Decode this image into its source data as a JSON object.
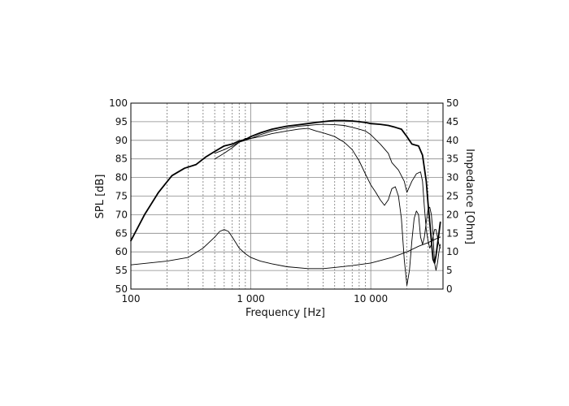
{
  "chart_data": {
    "type": "line",
    "xlabel": "Frequency [Hz]",
    "ylabel": "SPL [dB]",
    "y2label": "Impedance [Ohm]",
    "xscale": "log",
    "xlim": [
      100,
      40000
    ],
    "ylim": [
      50,
      100
    ],
    "y2lim": [
      0,
      50
    ],
    "grid": true,
    "x_ticks": [
      {
        "value": 100,
        "label": "100"
      },
      {
        "value": 1000,
        "label": "1 000"
      },
      {
        "value": 10000,
        "label": "10 000"
      }
    ],
    "y_ticks": [
      50,
      55,
      60,
      65,
      70,
      75,
      80,
      85,
      90,
      95,
      100
    ],
    "y2_ticks": [
      0,
      5,
      10,
      15,
      20,
      25,
      30,
      35,
      40,
      45,
      50
    ],
    "series": [
      {
        "axis": "left",
        "weight": "heavy",
        "x": [
          100,
          130,
          170,
          220,
          280,
          350,
          420,
          500,
          600,
          700,
          800,
          900,
          1000,
          1200,
          1500,
          1800,
          2000,
          2500,
          3000,
          3500,
          4000,
          4500,
          5000,
          6000,
          7000,
          8000,
          9000,
          10000,
          12000,
          14000,
          16000,
          18000,
          20000,
          22000,
          25000,
          27000,
          29000,
          30000,
          31000,
          32000,
          33000,
          34000,
          35000,
          36000,
          37000,
          38000
        ],
        "y": [
          63,
          70,
          76,
          80.5,
          82.5,
          83.5,
          85.5,
          87,
          88.5,
          89,
          89.8,
          90.2,
          91,
          92,
          93,
          93.5,
          93.8,
          94.2,
          94.5,
          94.8,
          95,
          95.2,
          95.3,
          95.3,
          95.2,
          95,
          94.8,
          94.5,
          94.3,
          94,
          93.5,
          93,
          91,
          89,
          88.5,
          86,
          79,
          73,
          68,
          63,
          58,
          57,
          59,
          62,
          65,
          68
        ]
      },
      {
        "axis": "left",
        "weight": "light",
        "x": [
          500,
          600,
          700,
          800,
          900,
          1000,
          1200,
          1500,
          2000,
          2500,
          3000,
          3500,
          4000,
          5000,
          6000,
          7000,
          8000,
          9000,
          10000,
          12000,
          14000,
          15000,
          17000,
          19000,
          20000,
          22000,
          24000,
          26000,
          27000,
          28000,
          29000,
          30000,
          31000,
          32000,
          33000,
          34000,
          35000,
          36000,
          37000,
          38000
        ],
        "y": [
          86.5,
          87.5,
          88.5,
          89.5,
          90,
          90.5,
          91.5,
          92.5,
          93.3,
          93.8,
          94,
          94.2,
          94.3,
          94.2,
          94,
          93.5,
          93,
          92.5,
          91.5,
          89,
          86.5,
          84,
          82,
          79,
          76,
          79,
          81,
          81.5,
          79,
          72,
          66,
          63,
          61,
          62,
          64,
          66,
          66,
          64,
          62,
          61
        ]
      },
      {
        "axis": "left",
        "weight": "light",
        "x": [
          500,
          600,
          700,
          800,
          900,
          1000,
          1200,
          1500,
          2000,
          2500,
          3000,
          3500,
          4000,
          4500,
          5000,
          6000,
          7000,
          8000,
          9000,
          10000,
          11000,
          12000,
          13000,
          14000,
          15000,
          16000,
          17000,
          18000,
          19000,
          20000,
          21000,
          22000,
          23000,
          24000,
          25000,
          26000,
          27000,
          28000,
          29000,
          30000,
          31000,
          32000,
          33000,
          34000,
          35000,
          36000,
          37000,
          38000
        ],
        "y": [
          85,
          86.5,
          88,
          89.5,
          90.5,
          90.5,
          91,
          91.8,
          92.5,
          93,
          93.2,
          92.5,
          92,
          91.5,
          91,
          89.5,
          87.5,
          84.5,
          81,
          78,
          76,
          74,
          72.5,
          74,
          77,
          77.5,
          75,
          69,
          58,
          51,
          55,
          63,
          69,
          71,
          70,
          64,
          62,
          64,
          68,
          71.5,
          72,
          70,
          65,
          57,
          55,
          57,
          60,
          62
        ]
      },
      {
        "axis": "right",
        "weight": "light",
        "x": [
          100,
          200,
          300,
          400,
          500,
          550,
          600,
          650,
          700,
          800,
          900,
          1000,
          1200,
          1500,
          2000,
          3000,
          4000,
          5000,
          7000,
          10000,
          15000,
          20000,
          25000,
          30000,
          35000,
          38000
        ],
        "y": [
          6.5,
          7.5,
          8.5,
          11,
          14,
          15.5,
          16,
          15.5,
          14,
          11,
          9.5,
          8.5,
          7.5,
          6.8,
          6,
          5.5,
          5.5,
          5.8,
          6.3,
          7,
          8.5,
          10,
          11.5,
          12.5,
          13.5,
          14
        ]
      }
    ]
  }
}
